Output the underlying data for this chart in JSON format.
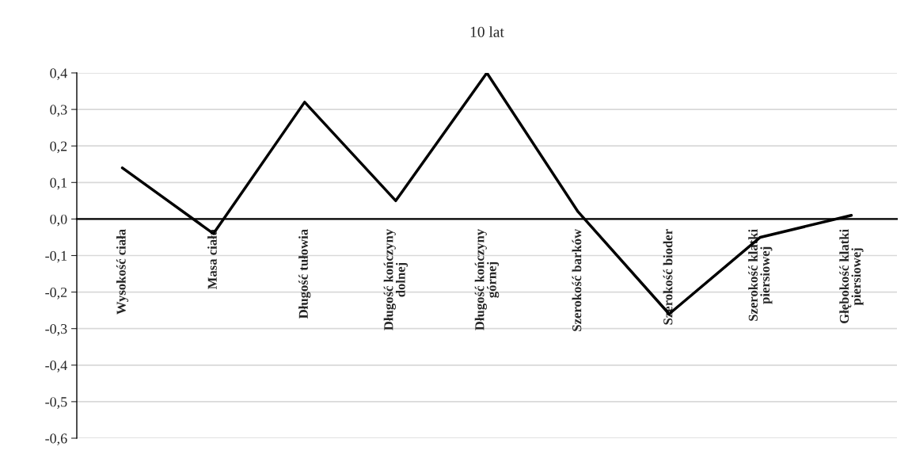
{
  "chart_data": {
    "type": "line",
    "title": "10 lat",
    "categories": [
      "Wysokość ciała",
      "Masa ciała",
      "Długość tułowia",
      "Długość kończyny\ndolnej",
      "Długość kończyny\ngórnej",
      "Szerokość barków",
      "Szerokość bioder",
      "Szerokość klatki\npiersiowej",
      "Głębokość klatki\npiersiowej"
    ],
    "series": [
      {
        "color": "#000000",
        "values": [
          0.14,
          -0.04,
          0.32,
          0.05,
          0.4,
          0.02,
          -0.26,
          -0.05,
          0.01
        ]
      }
    ],
    "ylim": [
      -0.6,
      0.4
    ],
    "yticks": [
      {
        "value": -0.6,
        "label": "-0,6"
      },
      {
        "value": -0.5,
        "label": "-0,5"
      },
      {
        "value": -0.4,
        "label": "-0,4"
      },
      {
        "value": -0.3,
        "label": "-0,3"
      },
      {
        "value": -0.2,
        "label": "-0,2"
      },
      {
        "value": -0.1,
        "label": "-0,1"
      },
      {
        "value": 0,
        "label": "0,0"
      },
      {
        "value": 0.1,
        "label": "0,1"
      },
      {
        "value": 0.2,
        "label": "0,2"
      },
      {
        "value": 0.3,
        "label": "0,3"
      },
      {
        "value": 0.4,
        "label": "0,4"
      }
    ],
    "grid": "y",
    "line_style": "solid"
  }
}
